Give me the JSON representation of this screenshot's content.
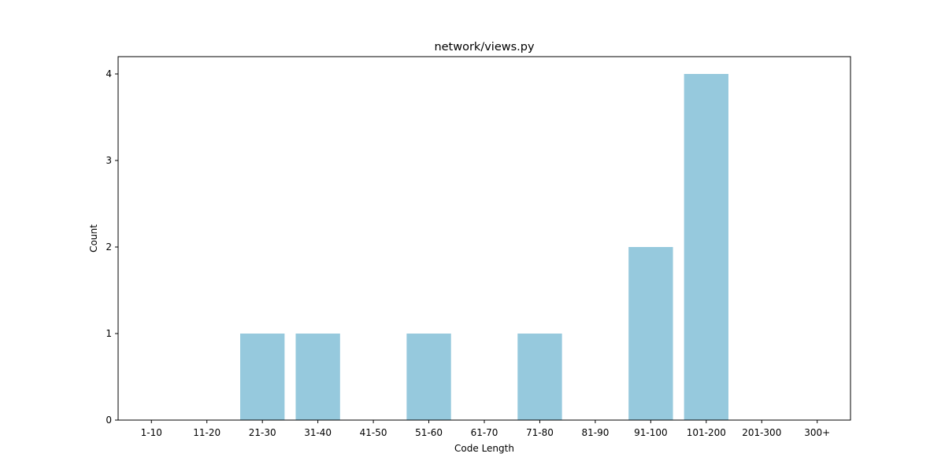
{
  "chart_data": {
    "type": "bar",
    "title": "network/views.py",
    "xlabel": "Code Length",
    "ylabel": "Count",
    "categories": [
      "1-10",
      "11-20",
      "21-30",
      "31-40",
      "41-50",
      "51-60",
      "61-70",
      "71-80",
      "81-90",
      "91-100",
      "101-200",
      "201-300",
      "300+"
    ],
    "values": [
      0,
      0,
      1,
      1,
      0,
      1,
      0,
      1,
      0,
      2,
      4,
      0,
      0
    ],
    "ylim": [
      0,
      4.2
    ],
    "yticks": [
      0,
      1,
      2,
      3,
      4
    ],
    "grid": false,
    "legend": "none",
    "bar_color": "#96c9dd"
  }
}
